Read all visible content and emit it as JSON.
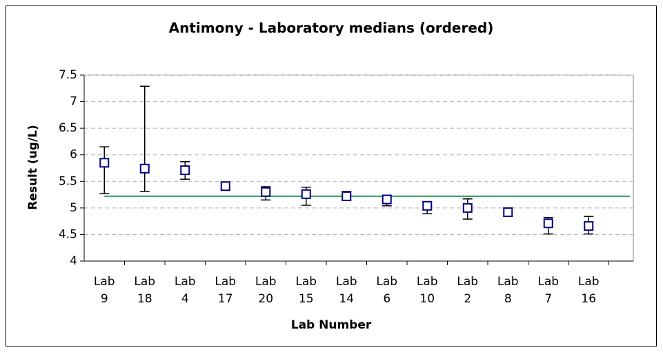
{
  "chart_data": {
    "type": "errorbar",
    "title": "Antimony - Laboratory medians (ordered)",
    "x_label": "Lab Number",
    "y_label": "Result (ug/L)",
    "categories": [
      "Lab 9",
      "Lab 18",
      "Lab 4",
      "Lab 17",
      "Lab 20",
      "Lab 15",
      "Lab 14",
      "Lab 6",
      "Lab 10",
      "Lab 2",
      "Lab 8",
      "Lab 7",
      "Lab 16"
    ],
    "series": [
      {
        "color": "#000080",
        "values": [
          5.85,
          5.74,
          5.71,
          5.41,
          5.3,
          5.26,
          5.22,
          5.16,
          5.04,
          5.0,
          4.92,
          4.71,
          4.66
        ],
        "low": [
          5.27,
          5.31,
          5.54,
          5.35,
          5.15,
          5.05,
          5.14,
          5.04,
          4.89,
          4.79,
          4.84,
          4.51,
          4.51
        ],
        "high": [
          6.15,
          7.29,
          5.87,
          5.48,
          5.4,
          5.39,
          5.31,
          5.22,
          5.11,
          5.17,
          5.0,
          4.82,
          4.84
        ]
      }
    ],
    "reference_line": {
      "value": 5.22,
      "color": "#2e9a5c"
    },
    "ylim": [
      4,
      7.5
    ],
    "yticks": [
      4,
      4.5,
      5,
      5.5,
      6,
      6.5,
      7,
      7.5
    ],
    "grid": true
  }
}
